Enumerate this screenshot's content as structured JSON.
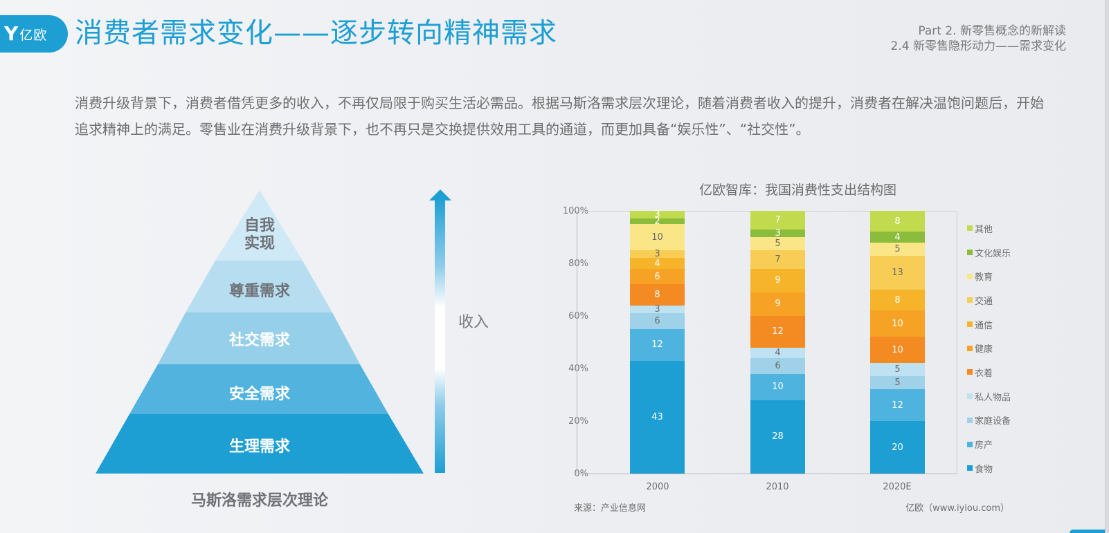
{
  "header": {
    "logo_mark": "Y",
    "logo_text": "亿欧",
    "title": "消费者需求变化——逐步转向精神需求",
    "section_line1": "Part 2. 新零售概念的新解读",
    "section_line2": "2.4 新零售隐形动力——需求变化"
  },
  "paragraph": "消费升级背景下，消费者借凭更多的收入，不再仅局限于购买生活必需品。根据马斯洛需求层次理论，随着消费者收入的提升，消费者在解决温饱问题后，开始追求精神上的满足。零售业在消费升级背景下，也不再只是交换提供效用工具的通道，而更加具备“娱乐性”、“社交性”。",
  "pyramid": {
    "caption": "马斯洛需求层次理论",
    "arrow_label": "收入",
    "levels": [
      {
        "label": "生理需求",
        "color": "#1e9fd4",
        "text_color": "#ffffff"
      },
      {
        "label": "安全需求",
        "color": "#52b3df",
        "text_color": "#ffffff"
      },
      {
        "label": "社交需求",
        "color": "#95cfe9",
        "text_color": "#ffffff"
      },
      {
        "label": "尊重需求",
        "color": "#b7def0",
        "text_color": "#6f7277"
      },
      {
        "label": "自我实现",
        "label_line1": "自我",
        "label_line2": "实现",
        "color": "#cfe9f6",
        "text_color": "#6f7277"
      }
    ]
  },
  "chart_data": {
    "type": "bar",
    "stacked": true,
    "title": "亿欧智库：我国消费性支出结构图",
    "categories": [
      "2000",
      "2010",
      "2020E"
    ],
    "xlabel": "",
    "ylabel": "",
    "ylim": [
      0,
      100
    ],
    "yticks": [
      "0%",
      "20%",
      "40%",
      "60%",
      "80%",
      "100%"
    ],
    "grid": false,
    "legend_position": "right",
    "series": [
      {
        "name": "食物",
        "color": "#1e9fd4",
        "values": [
          43,
          28,
          20
        ]
      },
      {
        "name": "房产",
        "color": "#4fb3e0",
        "values": [
          12,
          10,
          12
        ]
      },
      {
        "name": "家庭设备",
        "color": "#9fd1e8",
        "values": [
          6,
          6,
          5
        ]
      },
      {
        "name": "私人物品",
        "color": "#bfe2f2",
        "values": [
          3,
          4,
          5
        ]
      },
      {
        "name": "衣着",
        "color": "#f48a22",
        "values": [
          8,
          12,
          10
        ]
      },
      {
        "name": "健康",
        "color": "#f6a224",
        "values": [
          6,
          9,
          10
        ]
      },
      {
        "name": "通信",
        "color": "#f6b42a",
        "values": [
          4,
          9,
          8
        ]
      },
      {
        "name": "交通",
        "color": "#f7cd55",
        "values": [
          3,
          7,
          13
        ]
      },
      {
        "name": "教育",
        "color": "#fae686",
        "values": [
          10,
          5,
          5
        ]
      },
      {
        "name": "文化娱乐",
        "color": "#8bbc3c",
        "values": [
          2,
          3,
          4
        ]
      },
      {
        "name": "其他",
        "color": "#c2da4e",
        "values": [
          3,
          7,
          8
        ]
      }
    ],
    "dark_label_series": [
      "家庭设备",
      "私人物品",
      "交通",
      "教育"
    ],
    "source": "来源：产业信息网",
    "credit": "亿欧（www.iyiou.com）"
  }
}
